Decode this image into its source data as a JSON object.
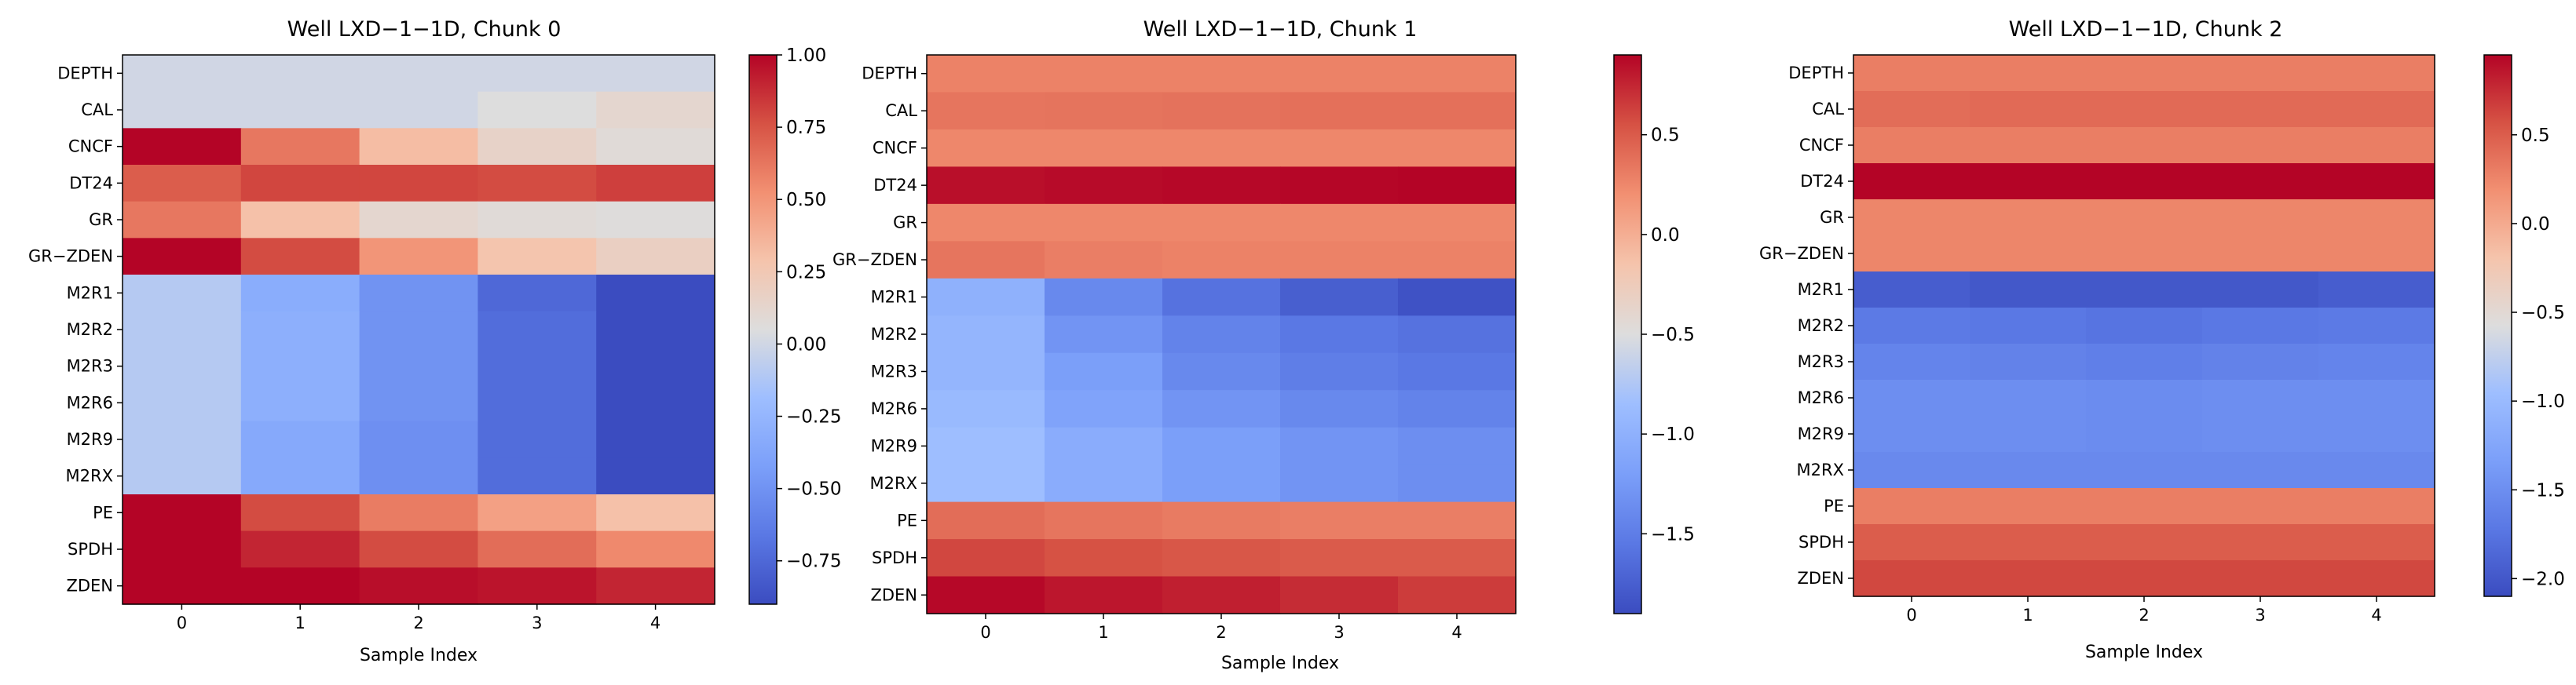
{
  "chart_data": [
    {
      "type": "heatmap",
      "title": "Well LXD−1−1D, Chunk 0",
      "xlabel": "Sample Index",
      "ylabel": "",
      "x_categories": [
        "0",
        "1",
        "2",
        "3",
        "4"
      ],
      "y_categories": [
        "DEPTH",
        "CAL",
        "CNCF",
        "DT24",
        "GR",
        "GR−ZDEN",
        "M2R1",
        "M2R2",
        "M2R3",
        "M2R6",
        "M2R9",
        "M2RX",
        "PE",
        "SPDH",
        "ZDEN"
      ],
      "values": [
        [
          0.0,
          0.0,
          0.0,
          0.0,
          0.0
        ],
        [
          0.0,
          0.0,
          0.0,
          0.05,
          0.12
        ],
        [
          1.0,
          0.62,
          0.32,
          0.15,
          0.08
        ],
        [
          0.72,
          0.8,
          0.8,
          0.78,
          0.82
        ],
        [
          0.62,
          0.3,
          0.12,
          0.08,
          0.06
        ],
        [
          1.0,
          0.78,
          0.5,
          0.28,
          0.18
        ],
        [
          -0.1,
          -0.32,
          -0.5,
          -0.75,
          -0.92
        ],
        [
          -0.1,
          -0.3,
          -0.5,
          -0.72,
          -0.9
        ],
        [
          -0.1,
          -0.3,
          -0.5,
          -0.72,
          -0.9
        ],
        [
          -0.1,
          -0.3,
          -0.5,
          -0.72,
          -0.9
        ],
        [
          -0.1,
          -0.35,
          -0.52,
          -0.72,
          -0.9
        ],
        [
          -0.1,
          -0.35,
          -0.52,
          -0.72,
          -0.9
        ],
        [
          1.0,
          0.78,
          0.6,
          0.45,
          0.3
        ],
        [
          1.0,
          0.9,
          0.78,
          0.66,
          0.55
        ],
        [
          1.0,
          1.0,
          0.97,
          0.95,
          0.9
        ]
      ],
      "colormap": "coolwarm",
      "vmin": -0.9,
      "vmax": 1.0,
      "colorbar_ticks": [
        1.0,
        0.75,
        0.5,
        0.25,
        0.0,
        -0.25,
        -0.5,
        -0.75
      ],
      "colorbar_tick_labels": [
        "1.00",
        "0.75",
        "0.50",
        "0.25",
        "0.00",
        "−0.25",
        "−0.50",
        "−0.75"
      ]
    },
    {
      "type": "heatmap",
      "title": "Well LXD−1−1D, Chunk 1",
      "xlabel": "Sample Index",
      "ylabel": "",
      "x_categories": [
        "0",
        "1",
        "2",
        "3",
        "4"
      ],
      "y_categories": [
        "DEPTH",
        "CAL",
        "CNCF",
        "DT24",
        "GR",
        "GR−ZDEN",
        "M2R1",
        "M2R2",
        "M2R3",
        "M2R6",
        "M2R9",
        "M2RX",
        "PE",
        "SPDH",
        "ZDEN"
      ],
      "values": [
        [
          0.28,
          0.28,
          0.28,
          0.28,
          0.28
        ],
        [
          0.35,
          0.36,
          0.37,
          0.38,
          0.38
        ],
        [
          0.25,
          0.25,
          0.25,
          0.25,
          0.25
        ],
        [
          0.85,
          0.87,
          0.88,
          0.89,
          0.9
        ],
        [
          0.25,
          0.25,
          0.25,
          0.25,
          0.25
        ],
        [
          0.35,
          0.3,
          0.28,
          0.28,
          0.28
        ],
        [
          -1.0,
          -1.4,
          -1.6,
          -1.75,
          -1.85
        ],
        [
          -0.95,
          -1.3,
          -1.45,
          -1.55,
          -1.6
        ],
        [
          -0.95,
          -1.2,
          -1.4,
          -1.5,
          -1.55
        ],
        [
          -0.9,
          -1.15,
          -1.3,
          -1.4,
          -1.45
        ],
        [
          -0.85,
          -1.05,
          -1.2,
          -1.3,
          -1.35
        ],
        [
          -0.85,
          -1.05,
          -1.2,
          -1.3,
          -1.35
        ],
        [
          0.4,
          0.35,
          0.32,
          0.3,
          0.3
        ],
        [
          0.6,
          0.55,
          0.52,
          0.5,
          0.5
        ],
        [
          0.88,
          0.82,
          0.78,
          0.72,
          0.65
        ]
      ],
      "colormap": "coolwarm",
      "vmin": -1.9,
      "vmax": 0.9,
      "colorbar_ticks": [
        0.5,
        0.0,
        -0.5,
        -1.0,
        -1.5
      ],
      "colorbar_tick_labels": [
        "0.5",
        "0.0",
        "−0.5",
        "−1.0",
        "−1.5"
      ]
    },
    {
      "type": "heatmap",
      "title": "Well LXD−1−1D, Chunk 2",
      "xlabel": "Sample Index",
      "ylabel": "",
      "x_categories": [
        "0",
        "1",
        "2",
        "3",
        "4"
      ],
      "y_categories": [
        "DEPTH",
        "CAL",
        "CNCF",
        "DT24",
        "GR",
        "GR−ZDEN",
        "M2R1",
        "M2R2",
        "M2R3",
        "M2R6",
        "M2R9",
        "M2RX",
        "PE",
        "SPDH",
        "ZDEN"
      ],
      "values": [
        [
          0.3,
          0.3,
          0.3,
          0.3,
          0.3
        ],
        [
          0.4,
          0.42,
          0.42,
          0.42,
          0.42
        ],
        [
          0.3,
          0.3,
          0.3,
          0.3,
          0.3
        ],
        [
          0.95,
          0.95,
          0.95,
          0.95,
          0.95
        ],
        [
          0.25,
          0.25,
          0.25,
          0.25,
          0.25
        ],
        [
          0.25,
          0.25,
          0.25,
          0.25,
          0.25
        ],
        [
          -1.95,
          -2.0,
          -2.0,
          -2.0,
          -1.95
        ],
        [
          -1.7,
          -1.72,
          -1.75,
          -1.72,
          -1.7
        ],
        [
          -1.6,
          -1.62,
          -1.65,
          -1.62,
          -1.6
        ],
        [
          -1.5,
          -1.5,
          -1.52,
          -1.5,
          -1.5
        ],
        [
          -1.5,
          -1.5,
          -1.52,
          -1.5,
          -1.5
        ],
        [
          -1.55,
          -1.55,
          -1.55,
          -1.55,
          -1.55
        ],
        [
          0.3,
          0.3,
          0.3,
          0.3,
          0.3
        ],
        [
          0.5,
          0.5,
          0.5,
          0.5,
          0.5
        ],
        [
          0.62,
          0.62,
          0.62,
          0.62,
          0.62
        ]
      ],
      "colormap": "coolwarm",
      "vmin": -2.1,
      "vmax": 0.95,
      "colorbar_ticks": [
        0.5,
        0.0,
        -0.5,
        -1.0,
        -1.5,
        -2.0
      ],
      "colorbar_tick_labels": [
        "0.5",
        "0.0",
        "−0.5",
        "−1.0",
        "−1.5",
        "−2.0"
      ]
    }
  ]
}
